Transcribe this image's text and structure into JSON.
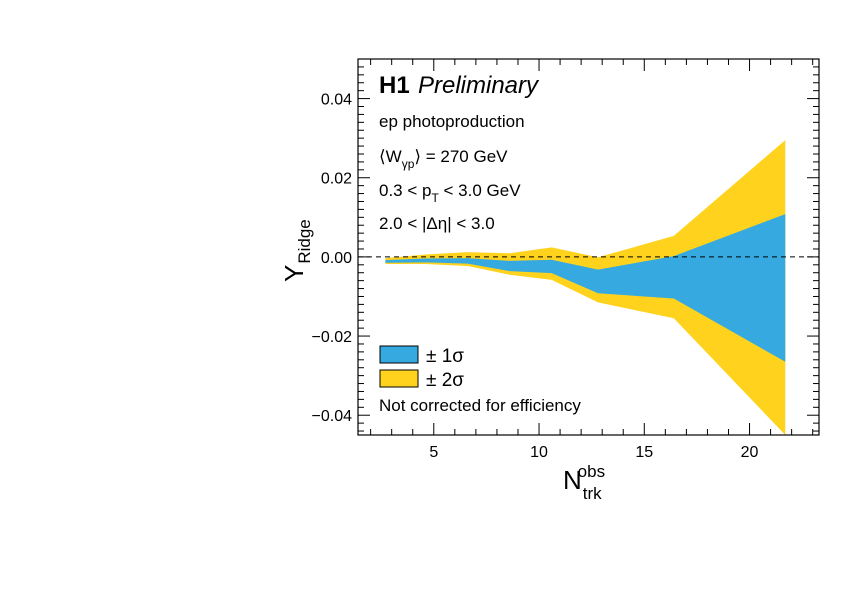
{
  "chart_data": {
    "type": "area",
    "experiment": "H1",
    "status": "Preliminary",
    "annotations": [
      "ep photoproduction",
      "⟨W_γp⟩ = 270 GeV",
      "0.3 < p_T < 3.0 GeV",
      "2.0 < |Δη| < 3.0",
      "Not corrected for efficiency"
    ],
    "xlabel": "N_trk^obs",
    "ylabel": "Y_Ridge",
    "xlim": [
      1.4,
      23.3
    ],
    "ylim": [
      -0.045,
      0.05
    ],
    "x_ticks": [
      5,
      10,
      15,
      20
    ],
    "y_ticks": [
      -0.04,
      -0.02,
      0.0,
      0.02,
      0.04
    ],
    "y_tick_labels": [
      "−0.04",
      "−0.02",
      "0.00",
      "0.02",
      "0.04"
    ],
    "reference_line": 0.0,
    "x": [
      2.7,
      4.6,
      6.6,
      8.6,
      10.6,
      12.8,
      16.4,
      21.7
    ],
    "series": [
      {
        "name": "± 2σ",
        "color": "#FFD21E",
        "upper": [
          -0.0003,
          0.0006,
          0.0012,
          0.0009,
          0.0024,
          -0.0001,
          0.0053,
          0.0295
        ],
        "lower": [
          -0.0018,
          -0.0018,
          -0.0023,
          -0.0045,
          -0.0058,
          -0.0115,
          -0.0155,
          -0.045
        ]
      },
      {
        "name": "± 1σ",
        "color": "#36A9E1",
        "upper": [
          -0.0008,
          -0.0004,
          -0.0003,
          -0.001,
          -0.0007,
          -0.0032,
          0.0002,
          0.0108
        ],
        "lower": [
          -0.0015,
          -0.0014,
          -0.0017,
          -0.0036,
          -0.0041,
          -0.0092,
          -0.0105,
          -0.0265
        ]
      }
    ],
    "legend_position": "bottom-left",
    "legend": [
      "± 1σ",
      "± 2σ"
    ]
  }
}
